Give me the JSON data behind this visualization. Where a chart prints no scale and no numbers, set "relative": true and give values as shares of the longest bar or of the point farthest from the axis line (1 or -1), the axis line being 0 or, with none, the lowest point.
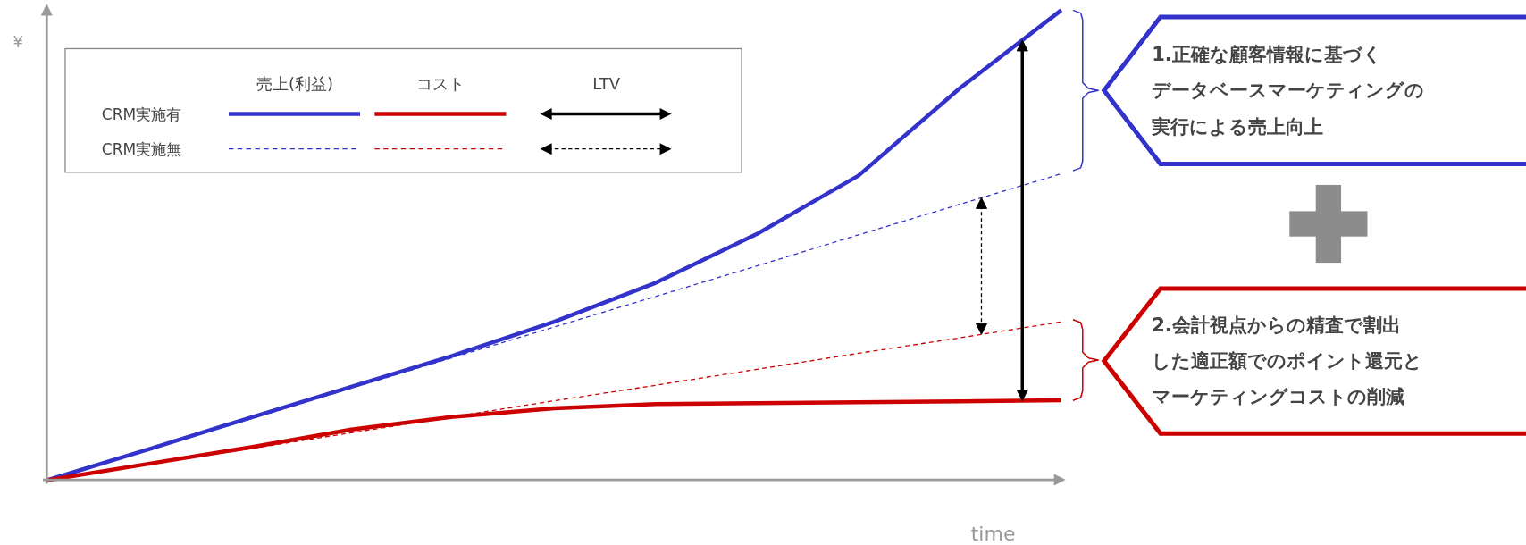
{
  "chart_data": {
    "type": "line",
    "relative": true,
    "xlabel": "time",
    "ylabel": "¥",
    "categories": [
      null,
      null,
      null,
      null,
      null,
      null,
      null,
      null,
      null,
      null,
      null
    ],
    "series": [
      {
        "color": "#3333cc",
        "line_style": "solid",
        "values": [
          0,
          0.066,
          0.133,
          0.199,
          0.265,
          0.337,
          0.42,
          0.524,
          0.648,
          0.834,
          1.0
        ]
      },
      {
        "color": "#3333cc",
        "line_style": "dashed",
        "values": [
          0,
          0.065,
          0.13,
          0.196,
          0.261,
          0.326,
          0.391,
          0.456,
          0.522,
          0.587,
          0.652
        ]
      },
      {
        "color": "#cc0000",
        "line_style": "solid",
        "values": [
          0,
          0.035,
          0.07,
          0.108,
          0.135,
          0.153,
          0.162,
          0.164,
          0.166,
          0.168,
          0.17
        ]
      },
      {
        "color": "#cc0000",
        "line_style": "dashed",
        "values": [
          0,
          0.034,
          0.067,
          0.101,
          0.135,
          0.169,
          0.202,
          0.236,
          0.27,
          0.303,
          0.337
        ]
      }
    ],
    "annotations": [
      "売上(利益)",
      "コスト",
      "LTV",
      "CRM実施有",
      "CRM実施無",
      "1.正確な顧客情報に基づく",
      "データベースマーケティングの",
      "実行による売上向上",
      "2.会計視点からの精査で割出",
      "した適正額でのポイント還元と",
      "マーケティングコストの削減"
    ]
  }
}
